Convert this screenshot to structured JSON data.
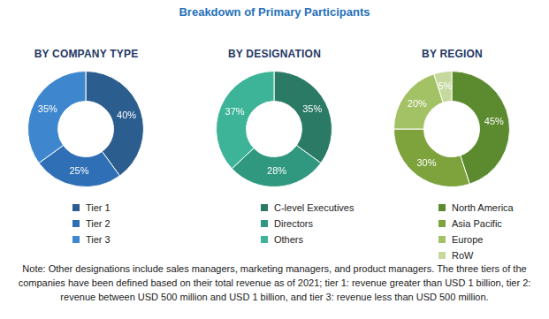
{
  "title": "Breakdown of Primary Participants",
  "chart_data": [
    {
      "type": "doughnut",
      "title": "BY COMPANY TYPE",
      "categories": [
        "Tier 1",
        "Tier 2",
        "Tier 3"
      ],
      "values": [
        40,
        25,
        35
      ],
      "value_labels": [
        "40%",
        "25%",
        "35%"
      ],
      "colors": [
        "#2c5d8f",
        "#2f6fb5",
        "#3e87cf"
      ],
      "data_labels": true,
      "legend": "bottom"
    },
    {
      "type": "doughnut",
      "title": "BY DESIGNATION",
      "categories": [
        "C-level Executives",
        "Directors",
        "Others"
      ],
      "values": [
        35,
        28,
        37
      ],
      "value_labels": [
        "35%",
        "28%",
        "37%"
      ],
      "colors": [
        "#2b7a66",
        "#2f987f",
        "#3db398"
      ],
      "data_labels": true,
      "legend": "bottom"
    },
    {
      "type": "doughnut",
      "title": "BY REGION",
      "categories": [
        "North America",
        "Asia Pacific",
        "Europe",
        "RoW"
      ],
      "values": [
        45,
        30,
        20,
        5
      ],
      "value_labels": [
        "45%",
        "30%",
        "20%",
        "5%"
      ],
      "colors": [
        "#5b8a2f",
        "#7ea33c",
        "#a3c265",
        "#c6d99c"
      ],
      "data_labels": true,
      "legend": "bottom"
    }
  ],
  "note": "Note: Other designations include sales managers, marketing managers, and product managers. The three tiers of the companies have been defined based on their total revenue as of 2021; tier 1: revenue greater than USD 1 billion, tier 2: revenue between USD 500 million and USD 1 billion, and tier 3: revenue less than USD 500 million."
}
